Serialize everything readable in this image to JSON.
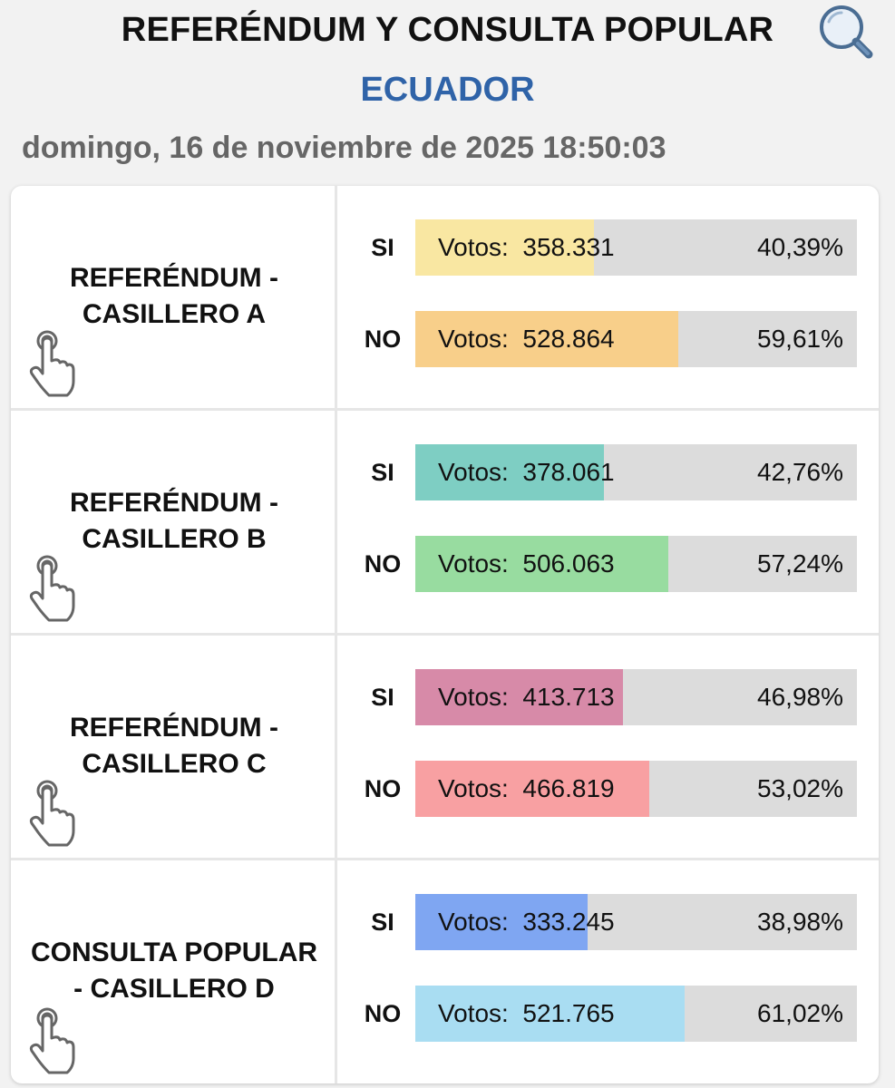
{
  "header": {
    "title": "REFERÉNDUM Y CONSULTA POPULAR",
    "country": "ECUADOR",
    "datetime": "domingo, 16 de noviembre de 2025 18:50:03",
    "search_icon": "search-icon"
  },
  "questions": [
    {
      "name": "REFERÉNDUM - CASILLERO A",
      "name_line1": "REFERÉNDUM -",
      "name_line2": "CASILLERO A",
      "options": [
        {
          "label": "SI",
          "votes_label": "Votos:",
          "votes": "358.331",
          "percent_text": "40,39%",
          "percent": 40.39,
          "color": "#f9e7a2"
        },
        {
          "label": "NO",
          "votes_label": "Votos:",
          "votes": "528.864",
          "percent_text": "59,61%",
          "percent": 59.61,
          "color": "#f8cf8a"
        }
      ]
    },
    {
      "name": "REFERÉNDUM - CASILLERO B",
      "name_line1": "REFERÉNDUM -",
      "name_line2": "CASILLERO B",
      "options": [
        {
          "label": "SI",
          "votes_label": "Votos:",
          "votes": "378.061",
          "percent_text": "42,76%",
          "percent": 42.76,
          "color": "#7ecec3"
        },
        {
          "label": "NO",
          "votes_label": "Votos:",
          "votes": "506.063",
          "percent_text": "57,24%",
          "percent": 57.24,
          "color": "#98dca0"
        }
      ]
    },
    {
      "name": "REFERÉNDUM - CASILLERO C",
      "name_line1": "REFERÉNDUM -",
      "name_line2": "CASILLERO C",
      "options": [
        {
          "label": "SI",
          "votes_label": "Votos:",
          "votes": "413.713",
          "percent_text": "46,98%",
          "percent": 46.98,
          "color": "#d78aa8"
        },
        {
          "label": "NO",
          "votes_label": "Votos:",
          "votes": "466.819",
          "percent_text": "53,02%",
          "percent": 53.02,
          "color": "#f8a0a2"
        }
      ]
    },
    {
      "name": "CONSULTA POPULAR - CASILLERO D",
      "name_line1": "CONSULTA POPULAR",
      "name_line2": "- CASILLERO D",
      "options": [
        {
          "label": "SI",
          "votes_label": "Votos:",
          "votes": "333.245",
          "percent_text": "38,98%",
          "percent": 38.98,
          "color": "#7fa6f2"
        },
        {
          "label": "NO",
          "votes_label": "Votos:",
          "votes": "521.765",
          "percent_text": "61,02%",
          "percent": 61.02,
          "color": "#a9ddf2"
        }
      ]
    }
  ]
}
